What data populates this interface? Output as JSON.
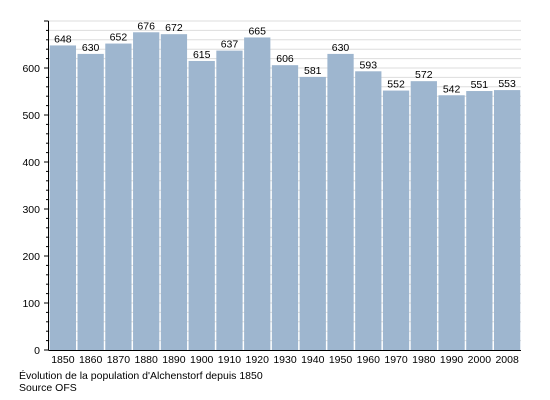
{
  "chart_data": {
    "type": "bar",
    "categories": [
      "1850",
      "1860",
      "1870",
      "1880",
      "1890",
      "1900",
      "1910",
      "1920",
      "1930",
      "1940",
      "1950",
      "1960",
      "1970",
      "1980",
      "1990",
      "2000",
      "2008"
    ],
    "values": [
      648,
      630,
      652,
      676,
      672,
      615,
      637,
      665,
      606,
      581,
      630,
      593,
      552,
      572,
      542,
      551,
      553
    ],
    "y_ticks": [
      0,
      100,
      200,
      300,
      400,
      500,
      600
    ],
    "ylim": [
      0,
      700
    ],
    "grid": true,
    "legend": "none",
    "bar_color": "#9eb6cf",
    "grid_color": "#dddddd",
    "axis_color": "#000000"
  },
  "caption": {
    "line1": "Évolution de la population d'Alchenstorf depuis 1850",
    "line2": "Source OFS"
  }
}
